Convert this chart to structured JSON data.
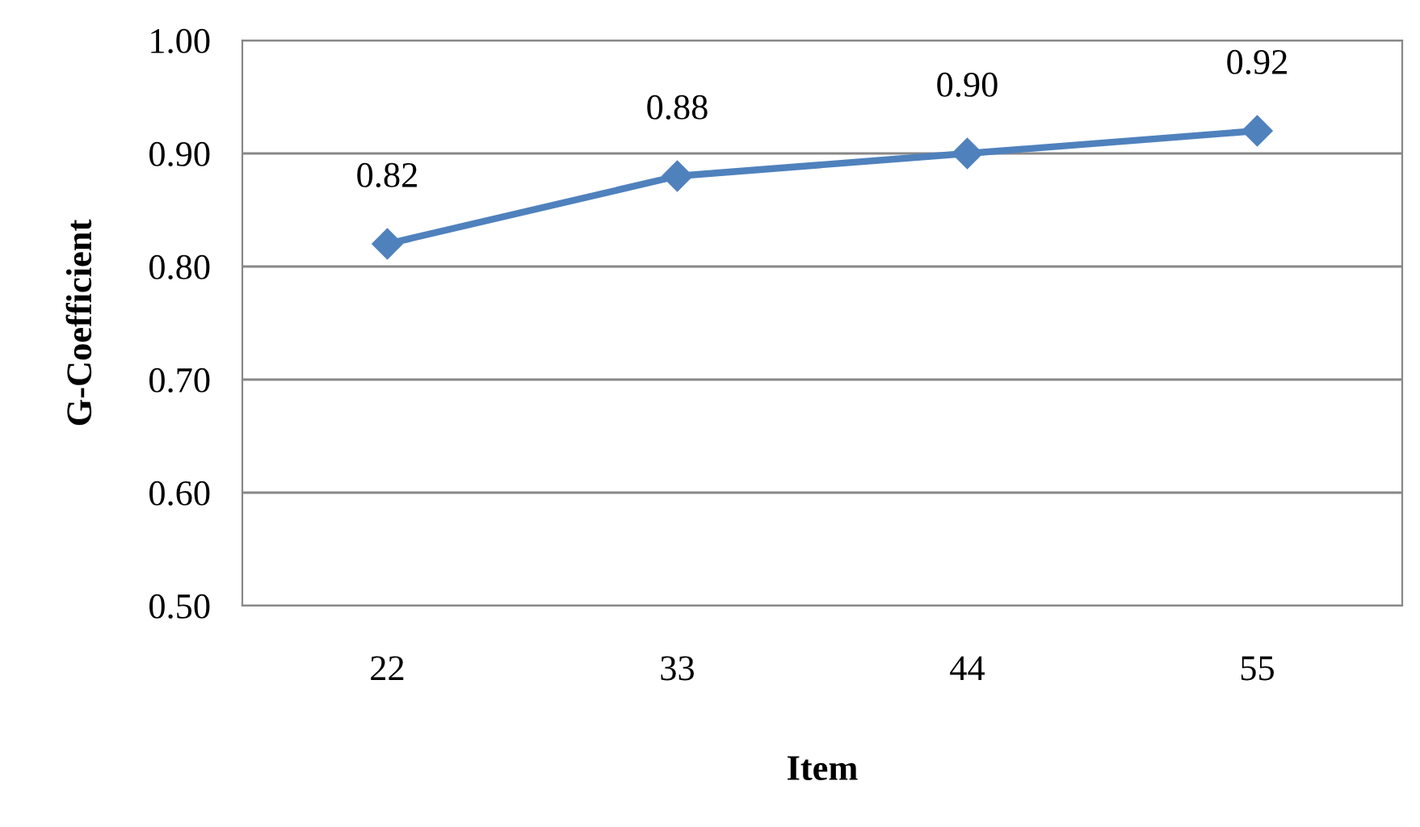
{
  "chart_data": {
    "type": "line",
    "xlabel": "Item",
    "ylabel": "G-Coefficient",
    "categories": [
      "22",
      "33",
      "44",
      "55"
    ],
    "series": [
      {
        "color": "#4f81bd",
        "values": [
          0.82,
          0.88,
          0.9,
          0.92
        ],
        "value_labels": [
          "0.82",
          "0.88",
          "0.90",
          "0.92"
        ]
      }
    ],
    "ylim": [
      0.5,
      1.0
    ],
    "yticks": [
      {
        "value": 0.5,
        "label": "0.50"
      },
      {
        "value": 0.6,
        "label": "0.60"
      },
      {
        "value": 0.7,
        "label": "0.70"
      },
      {
        "value": 0.8,
        "label": "0.80"
      },
      {
        "value": 0.9,
        "label": "0.90"
      },
      {
        "value": 1.0,
        "label": "1.00"
      }
    ],
    "grid": "y",
    "marker": "diamond",
    "line_style": "solid"
  }
}
